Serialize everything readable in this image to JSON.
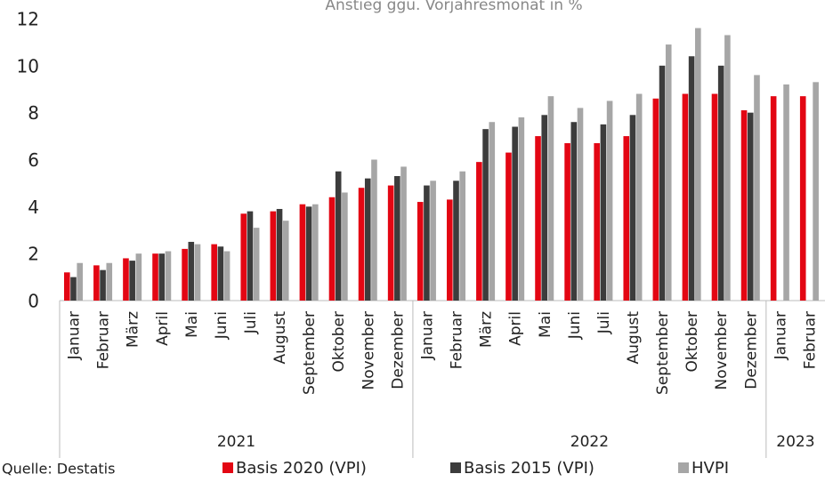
{
  "chart_data": {
    "type": "bar",
    "title": "Anstieg ggü. Vorjahresmonat in %",
    "source": "Quelle: Destatis",
    "categories": [
      "Januar",
      "Februar",
      "März",
      "April",
      "Mai",
      "Juni",
      "Juli",
      "August",
      "September",
      "Oktober",
      "November",
      "Dezember",
      "Januar",
      "Februar",
      "März",
      "April",
      "Mai",
      "Juni",
      "Juli",
      "August",
      "September",
      "Oktober",
      "November",
      "Dezember",
      "Januar",
      "Februar"
    ],
    "groups": [
      {
        "label": "2021",
        "count": 12
      },
      {
        "label": "2022",
        "count": 12
      },
      {
        "label": "2023",
        "count": 2
      }
    ],
    "series": [
      {
        "name": "Basis 2020 (VPI)",
        "color": "#e30613",
        "values": [
          1.2,
          1.5,
          1.8,
          2.0,
          2.2,
          2.4,
          3.7,
          3.8,
          4.1,
          4.4,
          4.8,
          4.9,
          4.2,
          4.3,
          5.9,
          6.3,
          7.0,
          6.7,
          6.7,
          7.0,
          8.6,
          8.8,
          8.8,
          8.1,
          8.7,
          8.7
        ]
      },
      {
        "name": "Basis 2015 (VPI)",
        "color": "#3c3c3c",
        "values": [
          1.0,
          1.3,
          1.7,
          2.0,
          2.5,
          2.3,
          3.8,
          3.9,
          4.0,
          5.5,
          5.2,
          5.3,
          4.9,
          5.1,
          7.3,
          7.4,
          7.9,
          7.6,
          7.5,
          7.9,
          10.0,
          10.4,
          10.0,
          8.0,
          null,
          null
        ]
      },
      {
        "name": "HVPI",
        "color": "#a6a6a6",
        "values": [
          1.6,
          1.6,
          2.0,
          2.1,
          2.4,
          2.1,
          3.1,
          3.4,
          4.1,
          4.6,
          6.0,
          5.7,
          5.1,
          5.5,
          7.6,
          7.8,
          8.7,
          8.2,
          8.5,
          8.8,
          10.9,
          11.6,
          11.3,
          9.6,
          9.2,
          9.3
        ]
      }
    ],
    "ylim": [
      0,
      12
    ],
    "yticks": [
      0,
      2,
      4,
      6,
      8,
      10,
      12
    ],
    "grid": false,
    "legend": "bottom"
  }
}
